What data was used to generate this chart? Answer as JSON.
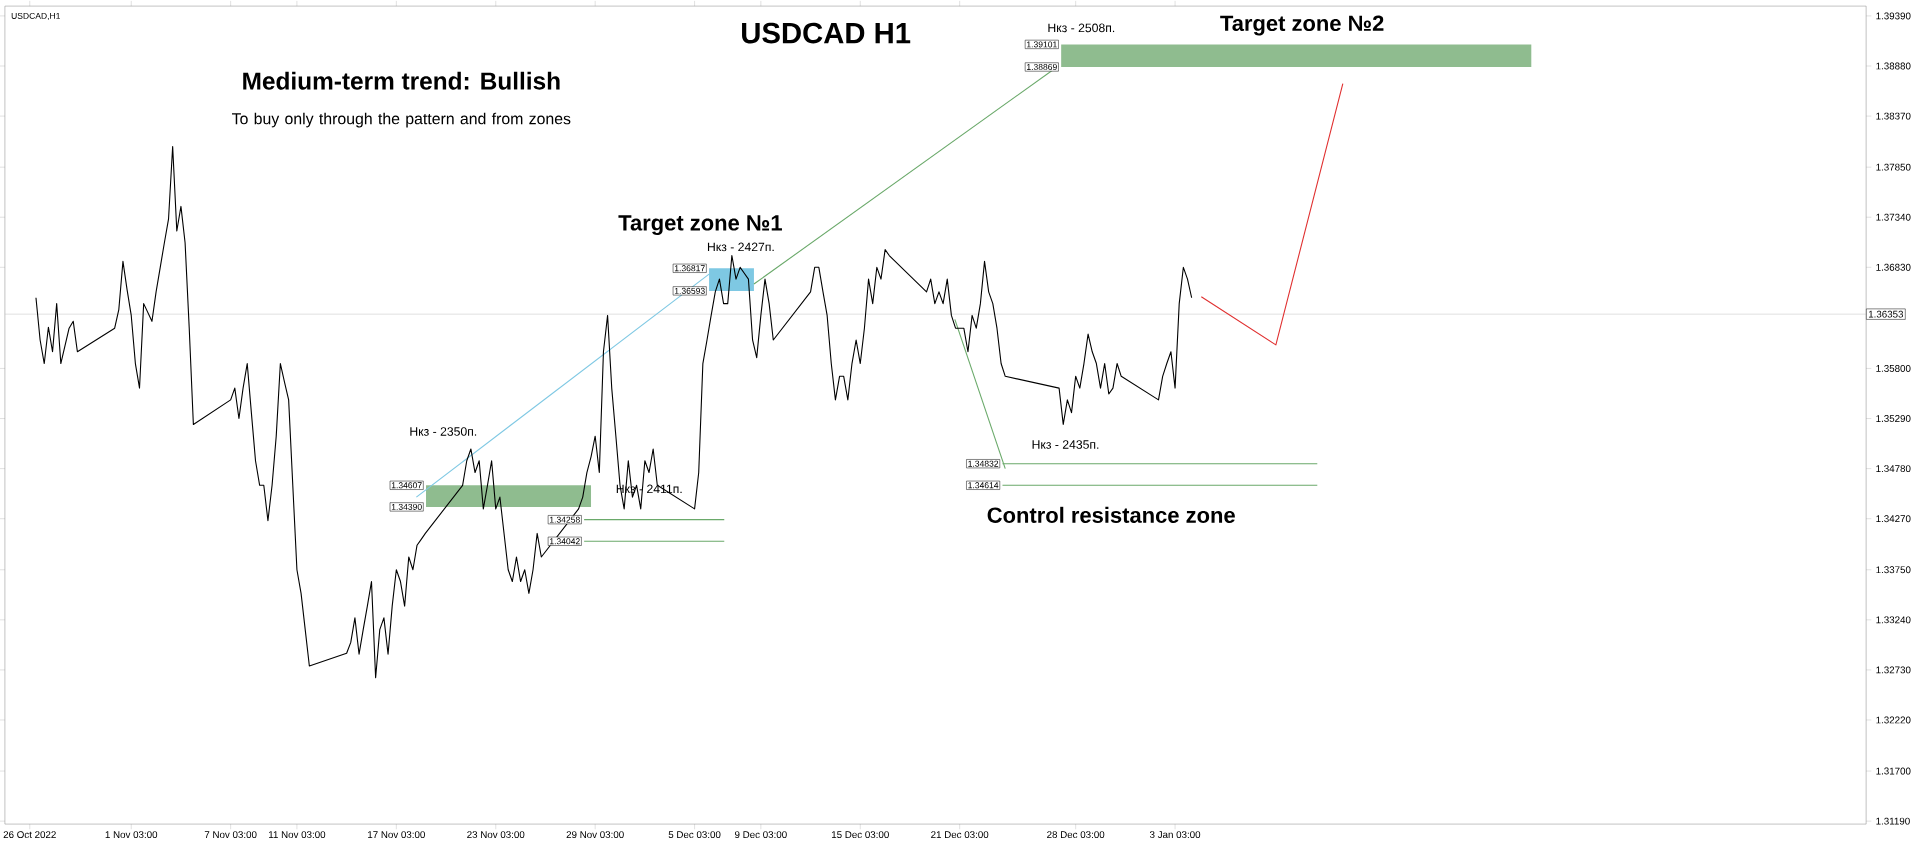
{
  "chart_data": {
    "type": "line",
    "title": "USDCAD H1",
    "subtitle": "Medium-term trend: Bullish",
    "annotations": [
      "USDCAD,H1",
      "To buy only through the pattern  and from zones",
      "Target zone №2",
      "Target zone №1",
      "Control resistance zone",
      "Нкз - 2508п.",
      "Нкз - 2427п.",
      "Нкз - 2350п.",
      "Нкз - 2411п.",
      "Нкз - 2435п.",
      {
        "text": "1.39101",
        "x": "2022-12-27T06:00",
        "y": 1.391
      },
      {
        "text": "1.38869",
        "x": "2022-12-27T06:00",
        "y": 1.3887
      },
      {
        "text": "1.36817",
        "x": "2022-12-06T00:00",
        "y": 1.3682
      },
      {
        "text": "1.36593",
        "x": "2022-12-06T00:00",
        "y": 1.3659
      },
      {
        "text": "1.34607",
        "x": "2022-11-18T22:00",
        "y": 1.3461
      },
      {
        "text": "1.34390",
        "x": "2022-11-18T22:00",
        "y": 1.3439
      },
      {
        "text": "1.34258",
        "x": "2022-11-28T11:00",
        "y": 1.3426
      },
      {
        "text": "1.34042",
        "x": "2022-11-28T11:00",
        "y": 1.3404
      },
      {
        "text": "1.34832",
        "x": "2022-12-23T17:00",
        "y": 1.3483
      },
      {
        "text": "1.34614",
        "x": "2022-12-23T17:00",
        "y": 1.3461
      }
    ],
    "xlim": [
      "2022-10-24T12:00",
      "2023-02-13T20:00"
    ],
    "ylim": [
      1.3116,
      1.3949
    ],
    "xticks": [
      {
        "value": "2022-10-26",
        "label": "26 Oct 2022"
      },
      {
        "value": "2022-11-01T03:00",
        "label": "1 Nov 03:00"
      },
      {
        "value": "2022-11-07T03:00",
        "label": "7 Nov 03:00"
      },
      {
        "value": "2022-11-11T03:00",
        "label": "11 Nov 03:00"
      },
      {
        "value": "2022-11-17T03:00",
        "label": "17 Nov 03:00"
      },
      {
        "value": "2022-11-23T03:00",
        "label": "23 Nov 03:00"
      },
      {
        "value": "2022-11-29T03:00",
        "label": "29 Nov 03:00"
      },
      {
        "value": "2022-12-05T03:00",
        "label": "5 Dec 03:00"
      },
      {
        "value": "2022-12-09T03:00",
        "label": "9 Dec 03:00"
      },
      {
        "value": "2022-12-15T03:00",
        "label": "15 Dec 03:00"
      },
      {
        "value": "2022-12-21T03:00",
        "label": "21 Dec 03:00"
      },
      {
        "value": "2022-12-28T03:00",
        "label": "28 Dec 03:00"
      },
      {
        "value": "2023-01-03T03:00",
        "label": "3 Jan 03:00"
      }
    ],
    "yticks": [
      {
        "value": 1.3939,
        "label": "1.39390"
      },
      {
        "value": 1.3888,
        "label": "1.38880"
      },
      {
        "value": 1.3837,
        "label": "1.38370"
      },
      {
        "value": 1.3785,
        "label": "1.37850"
      },
      {
        "value": 1.3734,
        "label": "1.37340"
      },
      {
        "value": 1.3683,
        "label": "1.36830"
      },
      {
        "value": 1.358,
        "label": "1.35800"
      },
      {
        "value": 1.3529,
        "label": "1.35290"
      },
      {
        "value": 1.3478,
        "label": "1.34780"
      },
      {
        "value": 1.3427,
        "label": "1.34270"
      },
      {
        "value": 1.3375,
        "label": "1.33750"
      },
      {
        "value": 1.3324,
        "label": "1.33240"
      },
      {
        "value": 1.3273,
        "label": "1.32730"
      },
      {
        "value": 1.3222,
        "label": "1.32220"
      },
      {
        "value": 1.317,
        "label": "1.31700"
      },
      {
        "value": 1.3119,
        "label": "1.31190"
      }
    ],
    "ref_lines": [
      {
        "axis": "y",
        "value": 1.36353,
        "label": "1.36353",
        "color": "#c0c0c0"
      }
    ],
    "series": [
      {
        "color": "#8fbc8f",
        "x": [
          "2022-12-27T06:00",
          "2023-01-24T15:00"
        ],
        "lower": [
          1.3887,
          1.3887
        ],
        "upper": [
          1.391,
          1.391
        ],
        "values": [
          null,
          null
        ]
      },
      {
        "color": "#7ec8e3",
        "x": [
          "2022-12-06T00:00",
          "2022-12-08T17:00"
        ],
        "lower": [
          1.3659,
          1.3659
        ],
        "upper": [
          1.3682,
          1.3682
        ],
        "values": [
          null,
          null
        ]
      },
      {
        "color": "#8fbc8f",
        "x": [
          "2022-11-18T22:00",
          "2022-11-28T21:00"
        ],
        "lower": [
          1.3439,
          1.3439
        ],
        "upper": [
          1.3461,
          1.3461
        ],
        "values": [
          null,
          null
        ]
      },
      {
        "color": "#6aa96a",
        "x": [
          "2022-11-28T11:00",
          "2022-12-06T22:00"
        ],
        "values": [
          1.3404,
          1.3404
        ]
      },
      {
        "color": "#6aa96a",
        "x": [
          "2022-11-28T11:00",
          "2022-12-06T22:00"
        ],
        "values": [
          1.3426,
          1.3426
        ]
      },
      {
        "color": "#6aa96a",
        "x": [
          "2022-12-23T17:00",
          "2023-01-11T17:00"
        ],
        "values": [
          1.3461,
          1.3461
        ]
      },
      {
        "color": "#6aa96a",
        "x": [
          "2022-12-23T17:00",
          "2023-01-11T17:00"
        ],
        "values": [
          1.3483,
          1.3483
        ]
      },
      {
        "color": "#7ec8e3",
        "x": [
          "2022-11-18T08:00",
          "2022-12-06T00:00"
        ],
        "values": [
          1.3449,
          1.3676
        ]
      },
      {
        "color": "#6aa96a",
        "x": [
          "2022-12-08T17:00",
          "2022-12-27T02:00"
        ],
        "values": [
          1.3666,
          1.3888
        ]
      },
      {
        "color": "#6aa96a",
        "x": [
          "2022-12-20T20:00",
          "2022-12-23T21:00"
        ],
        "values": [
          1.363,
          1.3478
        ]
      },
      {
        "color": "#000000",
        "x": [
          "2022-10-26T09:00",
          "2022-10-26T15:00",
          "2022-10-26T21:00",
          "2022-10-27T03:00",
          "2022-10-27T09:00",
          "2022-10-27T15:00",
          "2022-10-27T21:00",
          "2022-10-28T03:00",
          "2022-10-28T09:00",
          "2022-10-28T15:00",
          "2022-10-28T21:00",
          "2022-10-31T03:00",
          "2022-10-31T09:00",
          "2022-10-31T15:00",
          "2022-10-31T21:00",
          "2022-11-01T03:00",
          "2022-11-01T09:00",
          "2022-11-01T15:00",
          "2022-11-01T21:00",
          "2022-11-02T03:00",
          "2022-11-02T09:00",
          "2022-11-02T15:00",
          "2022-11-02T21:00",
          "2022-11-03T03:00",
          "2022-11-03T09:00",
          "2022-11-03T15:00",
          "2022-11-03T21:00",
          "2022-11-04T03:00",
          "2022-11-04T09:00",
          "2022-11-04T15:00",
          "2022-11-04T21:00",
          "2022-11-07T03:00",
          "2022-11-07T09:00",
          "2022-11-07T15:00",
          "2022-11-07T21:00",
          "2022-11-08T03:00",
          "2022-11-08T09:00",
          "2022-11-08T15:00",
          "2022-11-08T21:00",
          "2022-11-09T03:00",
          "2022-11-09T09:00",
          "2022-11-09T15:00",
          "2022-11-09T21:00",
          "2022-11-10T03:00",
          "2022-11-10T09:00",
          "2022-11-10T15:00",
          "2022-11-10T21:00",
          "2022-11-11T03:00",
          "2022-11-11T09:00",
          "2022-11-11T15:00",
          "2022-11-11T21:00",
          "2022-11-14T03:00",
          "2022-11-14T09:00",
          "2022-11-14T15:00",
          "2022-11-14T21:00",
          "2022-11-15T03:00",
          "2022-11-15T09:00",
          "2022-11-15T15:00",
          "2022-11-15T21:00",
          "2022-11-16T03:00",
          "2022-11-16T09:00",
          "2022-11-16T15:00",
          "2022-11-16T21:00",
          "2022-11-17T03:00",
          "2022-11-17T09:00",
          "2022-11-17T15:00",
          "2022-11-17T21:00",
          "2022-11-18T03:00",
          "2022-11-18T09:00",
          "2022-11-18T15:00",
          "2022-11-18T21:00",
          "2022-11-21T03:00",
          "2022-11-21T09:00",
          "2022-11-21T15:00",
          "2022-11-21T21:00",
          "2022-11-22T03:00",
          "2022-11-22T09:00",
          "2022-11-22T15:00",
          "2022-11-22T21:00",
          "2022-11-23T03:00",
          "2022-11-23T09:00",
          "2022-11-23T15:00",
          "2022-11-23T21:00",
          "2022-11-24T03:00",
          "2022-11-24T09:00",
          "2022-11-24T15:00",
          "2022-11-24T21:00",
          "2022-11-25T03:00",
          "2022-11-25T09:00",
          "2022-11-25T15:00",
          "2022-11-25T21:00",
          "2022-11-28T03:00",
          "2022-11-28T09:00",
          "2022-11-28T15:00",
          "2022-11-28T21:00",
          "2022-11-29T03:00",
          "2022-11-29T09:00",
          "2022-11-29T15:00",
          "2022-11-29T21:00",
          "2022-11-30T03:00",
          "2022-11-30T09:00",
          "2022-11-30T15:00",
          "2022-11-30T21:00",
          "2022-12-01T03:00",
          "2022-12-01T09:00",
          "2022-12-01T15:00",
          "2022-12-01T21:00",
          "2022-12-02T03:00",
          "2022-12-02T09:00",
          "2022-12-02T15:00",
          "2022-12-02T21:00",
          "2022-12-05T03:00",
          "2022-12-05T09:00",
          "2022-12-05T15:00",
          "2022-12-05T21:00",
          "2022-12-06T03:00",
          "2022-12-06T09:00",
          "2022-12-06T15:00",
          "2022-12-06T21:00",
          "2022-12-07T03:00",
          "2022-12-07T09:00",
          "2022-12-07T15:00",
          "2022-12-07T21:00",
          "2022-12-08T03:00",
          "2022-12-08T09:00",
          "2022-12-08T15:00",
          "2022-12-08T21:00",
          "2022-12-09T03:00",
          "2022-12-09T09:00",
          "2022-12-09T15:00",
          "2022-12-09T21:00",
          "2022-12-12T03:00",
          "2022-12-12T09:00",
          "2022-12-12T15:00",
          "2022-12-12T21:00",
          "2022-12-13T03:00",
          "2022-12-13T09:00",
          "2022-12-13T15:00",
          "2022-12-13T21:00",
          "2022-12-14T03:00",
          "2022-12-14T09:00",
          "2022-12-14T15:00",
          "2022-12-14T21:00",
          "2022-12-15T03:00",
          "2022-12-15T09:00",
          "2022-12-15T15:00",
          "2022-12-15T21:00",
          "2022-12-16T03:00",
          "2022-12-16T09:00",
          "2022-12-16T15:00",
          "2022-12-16T21:00",
          "2022-12-19T03:00",
          "2022-12-19T09:00",
          "2022-12-19T15:00",
          "2022-12-19T21:00",
          "2022-12-20T03:00",
          "2022-12-20T09:00",
          "2022-12-20T15:00",
          "2022-12-20T21:00",
          "2022-12-21T03:00",
          "2022-12-21T09:00",
          "2022-12-21T15:00",
          "2022-12-21T21:00",
          "2022-12-22T03:00",
          "2022-12-22T09:00",
          "2022-12-22T15:00",
          "2022-12-22T21:00",
          "2022-12-23T03:00",
          "2022-12-23T09:00",
          "2022-12-23T15:00",
          "2022-12-23T21:00",
          "2022-12-27T03:00",
          "2022-12-27T09:00",
          "2022-12-27T15:00",
          "2022-12-27T21:00",
          "2022-12-28T03:00",
          "2022-12-28T09:00",
          "2022-12-28T15:00",
          "2022-12-28T21:00",
          "2022-12-29T03:00",
          "2022-12-29T09:00",
          "2022-12-29T15:00",
          "2022-12-29T21:00",
          "2022-12-30T03:00",
          "2022-12-30T09:00",
          "2022-12-30T15:00",
          "2022-12-30T21:00",
          "2023-01-02T03:00",
          "2023-01-02T09:00",
          "2023-01-02T15:00",
          "2023-01-02T21:00",
          "2023-01-03T03:00",
          "2023-01-03T09:00",
          "2023-01-03T15:00",
          "2023-01-03T21:00",
          "2023-01-04T03:00"
        ],
        "values": [
          1.3652,
          1.3609,
          1.3585,
          1.3622,
          1.3597,
          1.3646,
          1.3585,
          1.3603,
          1.3621,
          1.3628,
          1.3597,
          1.3621,
          1.364,
          1.3689,
          1.366,
          1.3634,
          1.3585,
          1.356,
          1.3646,
          1.3637,
          1.3628,
          1.3658,
          1.3683,
          1.3708,
          1.3732,
          1.3806,
          1.372,
          1.3745,
          1.3708,
          1.3621,
          1.3523,
          1.3548,
          1.356,
          1.3529,
          1.356,
          1.3585,
          1.3535,
          1.3486,
          1.3461,
          1.3461,
          1.3425,
          1.3461,
          1.3511,
          1.3585,
          1.3566,
          1.3548,
          1.3461,
          1.3375,
          1.3351,
          1.3314,
          1.3277,
          1.329,
          1.3301,
          1.3326,
          1.3289,
          1.3314,
          1.3338,
          1.3363,
          1.3265,
          1.3314,
          1.3326,
          1.3289,
          1.3338,
          1.3375,
          1.3363,
          1.3338,
          1.3388,
          1.3375,
          1.34,
          1.3406,
          1.3412,
          1.3461,
          1.3486,
          1.3498,
          1.3474,
          1.3486,
          1.3437,
          1.3461,
          1.3486,
          1.3437,
          1.3449,
          1.3412,
          1.3375,
          1.3363,
          1.3388,
          1.3363,
          1.3375,
          1.3351,
          1.3375,
          1.3412,
          1.3388,
          1.3437,
          1.3449,
          1.3474,
          1.349,
          1.3511,
          1.3474,
          1.3597,
          1.3634,
          1.356,
          1.3511,
          1.3461,
          1.3437,
          1.3486,
          1.3449,
          1.3461,
          1.3437,
          1.3486,
          1.3474,
          1.3498,
          1.3461,
          1.3437,
          1.3474,
          1.3585,
          1.3609,
          1.3634,
          1.3658,
          1.3671,
          1.3646,
          1.3646,
          1.3695,
          1.3671,
          1.3683,
          1.3677,
          1.3671,
          1.3609,
          1.3591,
          1.3634,
          1.3671,
          1.3646,
          1.3609,
          1.3658,
          1.3683,
          1.3683,
          1.3658,
          1.3634,
          1.3585,
          1.3548,
          1.3572,
          1.3572,
          1.3548,
          1.3585,
          1.3609,
          1.3585,
          1.3621,
          1.3671,
          1.3646,
          1.3683,
          1.3671,
          1.3701,
          1.3695,
          1.3658,
          1.3671,
          1.3646,
          1.3658,
          1.3646,
          1.3671,
          1.3634,
          1.3621,
          1.3621,
          1.3621,
          1.3597,
          1.3634,
          1.3621,
          1.3646,
          1.3689,
          1.3658,
          1.3646,
          1.3621,
          1.3585,
          1.3572,
          1.356,
          1.3523,
          1.3548,
          1.3535,
          1.3572,
          1.356,
          1.3585,
          1.3615,
          1.3597,
          1.3585,
          1.356,
          1.3585,
          1.3554,
          1.356,
          1.3585,
          1.3572,
          1.3548,
          1.3572,
          1.3585,
          1.3597,
          1.356,
          1.3646,
          1.3683,
          1.3671,
          1.3652
        ]
      },
      {
        "color": "#e03030",
        "x": [
          "2023-01-04T17:00",
          "2023-01-09T05:00",
          "2023-01-13T06:00"
        ],
        "values": [
          1.3653,
          1.3604,
          1.387
        ]
      }
    ]
  }
}
